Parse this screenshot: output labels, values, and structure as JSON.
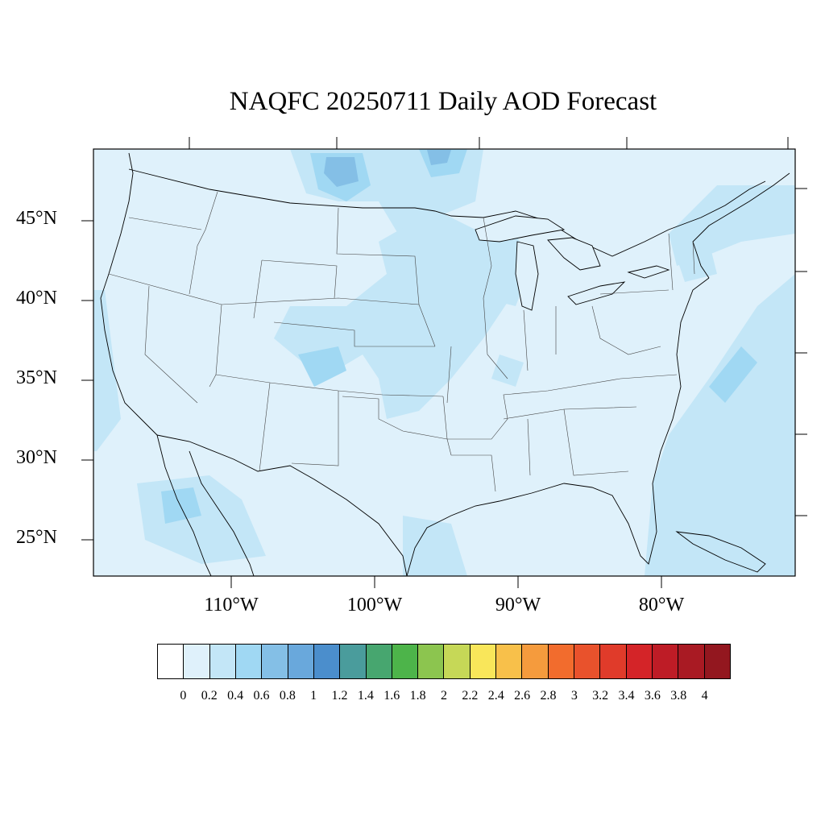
{
  "title": "NAQFC 20250711 Daily AOD Forecast",
  "map": {
    "projection": "lambert-conformal",
    "region": "Contiguous United States",
    "background_aod_color": "#dff1fb",
    "lat_labels": [
      "45°N",
      "40°N",
      "35°N",
      "30°N",
      "25°N"
    ],
    "lon_labels": [
      "110°W",
      "100°W",
      "90°W",
      "80°W"
    ],
    "features": [
      "state-boundaries",
      "coastlines",
      "great-lakes",
      "aod-contours"
    ]
  },
  "colorbar": {
    "colors": [
      "#ffffff",
      "#dff1fb",
      "#c3e6f7",
      "#a0d8f3",
      "#84bfe6",
      "#69a8dc",
      "#4b8ecc",
      "#4a9c9c",
      "#47a66f",
      "#4db44a",
      "#8cc54f",
      "#c6d857",
      "#f9e65a",
      "#f8c04a",
      "#f59b3d",
      "#f26c2d",
      "#e9522c",
      "#e03b2a",
      "#d42428",
      "#be1c26",
      "#a91a23",
      "#93171f"
    ],
    "labels": [
      "0",
      "0.2",
      "0.4",
      "0.6",
      "0.8",
      "1",
      "1.2",
      "1.4",
      "1.6",
      "1.8",
      "2",
      "2.2",
      "2.4",
      "2.6",
      "2.8",
      "3",
      "3.2",
      "3.4",
      "3.6",
      "3.8",
      "4"
    ]
  }
}
